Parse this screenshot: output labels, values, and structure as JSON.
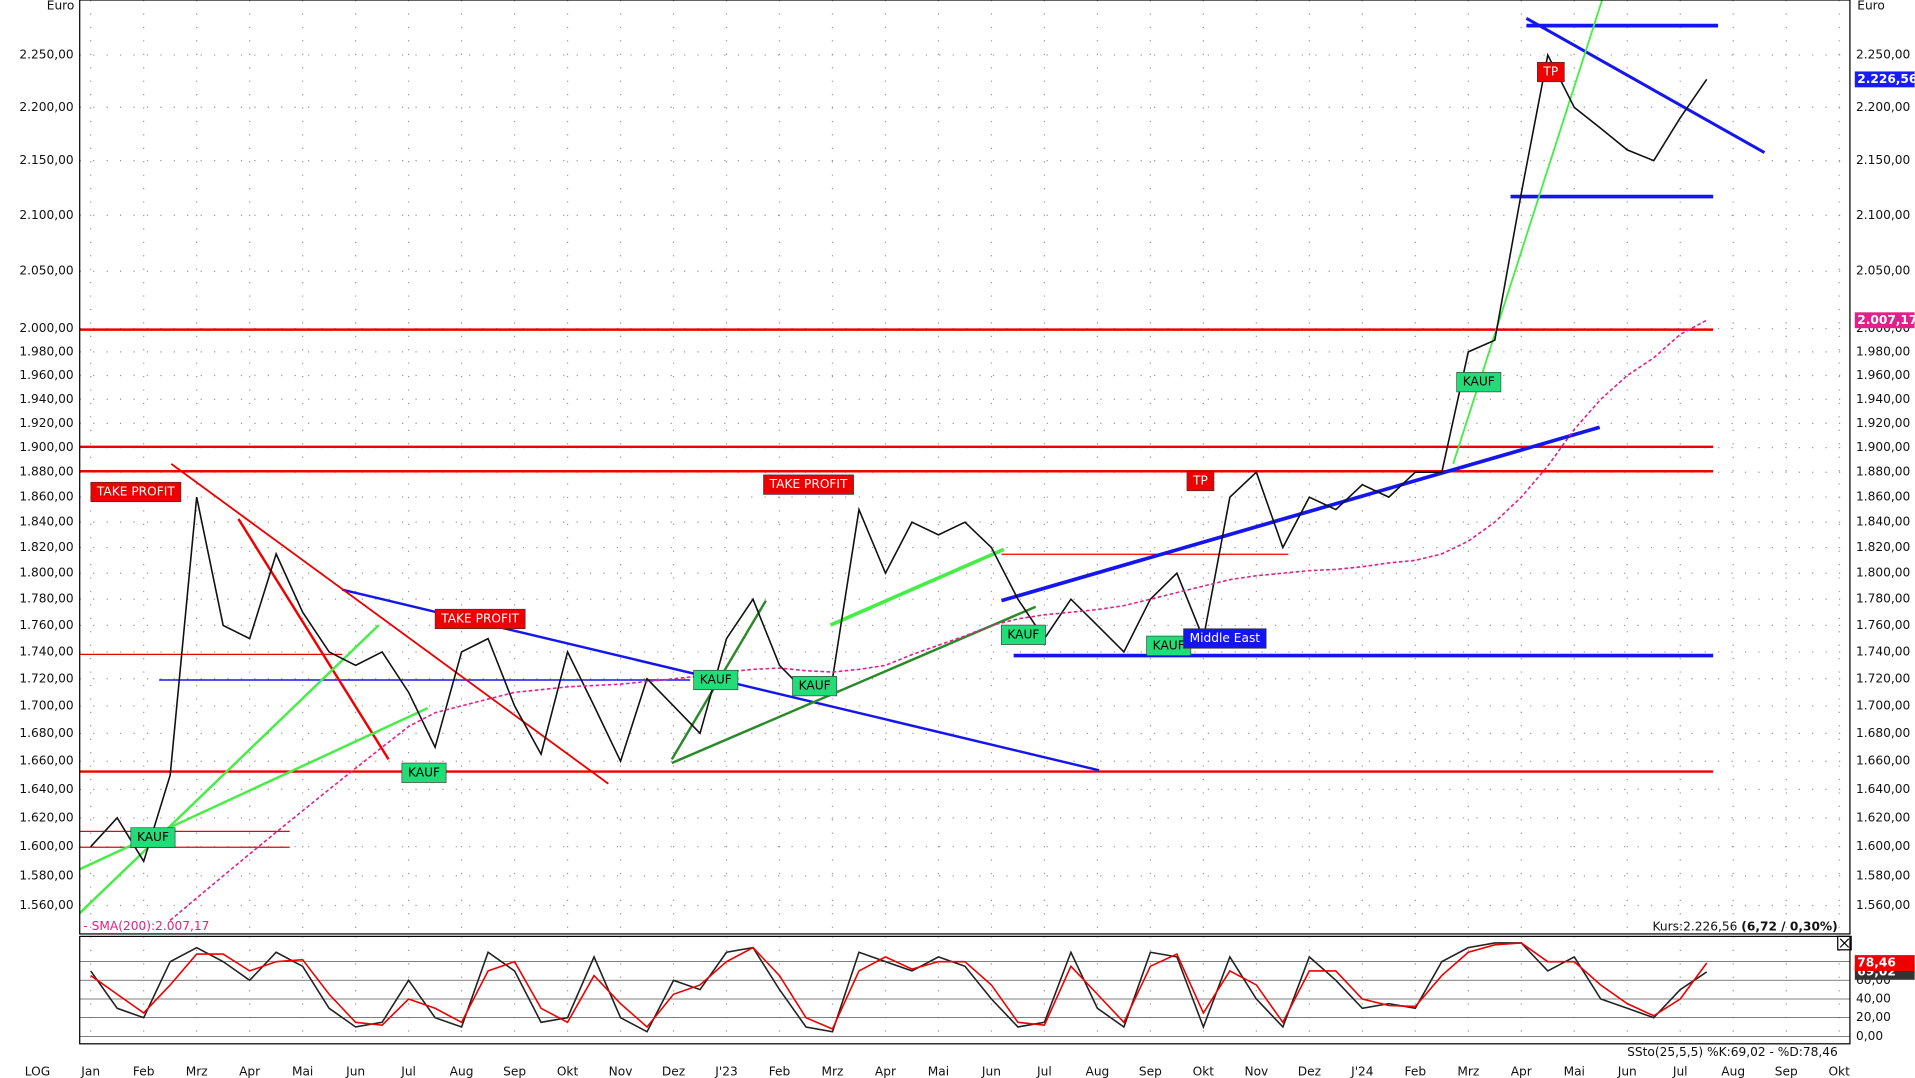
{
  "chart_data": [
    {
      "type": "line",
      "log": true,
      "ylabel": "Euro",
      "categories": [
        "Jan",
        null,
        "Feb",
        null,
        "Mrz",
        null,
        "Apr",
        null,
        "Mai",
        null,
        "Jun",
        null,
        "Jul",
        null,
        "Aug",
        null,
        "Sep",
        null,
        "Okt",
        null,
        "Nov",
        null,
        "Dez",
        null,
        "J'23",
        null,
        "Feb",
        null,
        "Mrz",
        null,
        "Apr",
        null,
        "Mai",
        null,
        "Jun",
        null,
        "Jul",
        null,
        "Aug",
        null,
        "Sep",
        null,
        "Okt",
        null,
        "Nov",
        null,
        "Dez",
        null,
        "J'24",
        null,
        "Feb",
        null,
        "Mrz",
        null,
        "Apr",
        null,
        "Mai",
        null,
        "Jun",
        null,
        "Jul",
        null,
        "Aug",
        null,
        "Sep",
        null,
        "Okt"
      ],
      "series": [
        {
          "color": "#111111",
          "dash": false,
          "values": [
            1600,
            1620,
            1590,
            1650,
            1860,
            1760,
            1750,
            1815,
            1770,
            1740,
            1730,
            1740,
            1710,
            1670,
            1740,
            1750,
            1700,
            1665,
            1740,
            1700,
            1660,
            1720,
            1700,
            1680,
            1750,
            1780,
            1730,
            1710,
            1720,
            1850,
            1800,
            1840,
            1830,
            1840,
            1820,
            1780,
            1750,
            1780,
            1760,
            1740,
            1780,
            1800,
            1750,
            1860,
            1880,
            1820,
            1860,
            1850,
            1870,
            1860,
            1880,
            1880,
            1980,
            1990,
            2120,
            2250,
            2200,
            2180,
            2160,
            2150,
            2190,
            2226.56,
            null,
            null,
            null,
            null,
            null
          ]
        },
        {
          "color": "#e0218a",
          "dash": true,
          "values": [
            null,
            null,
            null,
            1550,
            1565,
            1580,
            1595,
            1610,
            1625,
            1640,
            1655,
            1670,
            1685,
            1695,
            1700,
            1705,
            1710,
            1712,
            1714,
            1715,
            1716,
            1718,
            1720,
            1722,
            1725,
            1727,
            1728,
            1726,
            1725,
            1727,
            1730,
            1738,
            1745,
            1752,
            1760,
            1765,
            1768,
            1770,
            1772,
            1775,
            1780,
            1785,
            1790,
            1795,
            1798,
            1800,
            1802,
            1803,
            1805,
            1808,
            1810,
            1815,
            1825,
            1840,
            1860,
            1885,
            1915,
            1940,
            1960,
            1975,
            1995,
            2007.17,
            null,
            null,
            null,
            null,
            null
          ]
        }
      ],
      "ylim": [
        1541,
        2304
      ],
      "yticks": [
        {
          "value": 1560,
          "label": "1.560,00"
        },
        {
          "value": 1580,
          "label": "1.580,00"
        },
        {
          "value": 1600,
          "label": "1.600,00"
        },
        {
          "value": 1620,
          "label": "1.620,00"
        },
        {
          "value": 1640,
          "label": "1.640,00"
        },
        {
          "value": 1660,
          "label": "1.660,00"
        },
        {
          "value": 1680,
          "label": "1.680,00"
        },
        {
          "value": 1700,
          "label": "1.700,00"
        },
        {
          "value": 1720,
          "label": "1.720,00"
        },
        {
          "value": 1740,
          "label": "1.740,00"
        },
        {
          "value": 1760,
          "label": "1.760,00"
        },
        {
          "value": 1780,
          "label": "1.780,00"
        },
        {
          "value": 1800,
          "label": "1.800,00"
        },
        {
          "value": 1820,
          "label": "1.820,00"
        },
        {
          "value": 1840,
          "label": "1.840,00"
        },
        {
          "value": 1860,
          "label": "1.860,00"
        },
        {
          "value": 1880,
          "label": "1.880,00"
        },
        {
          "value": 1900,
          "label": "1.900,00"
        },
        {
          "value": 1920,
          "label": "1.920,00"
        },
        {
          "value": 1940,
          "label": "1.940,00"
        },
        {
          "value": 1960,
          "label": "1.960,00"
        },
        {
          "value": 1980,
          "label": "1.980,00"
        },
        {
          "value": 2000,
          "label": "2.000,00"
        },
        {
          "value": 2050,
          "label": "2.050,00"
        },
        {
          "value": 2100,
          "label": "2.100,00"
        },
        {
          "value": 2150,
          "label": "2.150,00"
        },
        {
          "value": 2200,
          "label": "2.200,00"
        },
        {
          "value": 2250,
          "label": "2.250,00"
        }
      ],
      "grid": true,
      "markers": [
        {
          "value": 2226.56,
          "label": "2.226,56",
          "color": "#1a1aff"
        },
        {
          "value": 2007.17,
          "label": "2.007,17",
          "color": "#e0218a"
        }
      ],
      "sma_label": "- SMA(200):2.007,17",
      "price_caption": "Kurs:2.226,56 ",
      "change_caption": "(6,72 / 0,30%)",
      "axis_mode": "LOG",
      "annotations": [
        {
          "text": "TAKE PROFIT",
          "color": "#ee0000"
        },
        {
          "text": "TAKE PROFIT",
          "color": "#ee0000"
        },
        {
          "text": "TAKE PROFIT",
          "color": "#ee0000"
        },
        {
          "text": "TP",
          "color": "#ee0000"
        },
        {
          "text": "TP",
          "color": "#ee0000"
        },
        {
          "text": "KAUF",
          "color": "#22dd77"
        },
        {
          "text": "KAUF",
          "color": "#22dd77"
        },
        {
          "text": "KAUF",
          "color": "#22dd77"
        },
        {
          "text": "KAUF",
          "color": "#22dd77"
        },
        {
          "text": "KAUF",
          "color": "#22dd77"
        },
        {
          "text": "KAUF",
          "color": "#22dd77"
        },
        {
          "text": "KAUF",
          "color": "#22dd77"
        },
        {
          "text": "Middle East",
          "color": "#1515ee"
        }
      ]
    },
    {
      "type": "line",
      "label": "SSto(25,5,5) %K:69,02 - %D:78,46",
      "series": [
        {
          "color": "#222222",
          "values": [
            70,
            30,
            20,
            80,
            95,
            80,
            60,
            90,
            75,
            30,
            10,
            15,
            60,
            20,
            10,
            90,
            70,
            15,
            20,
            85,
            20,
            5,
            60,
            50,
            90,
            95,
            50,
            10,
            5,
            90,
            80,
            70,
            85,
            75,
            40,
            10,
            15,
            90,
            30,
            10,
            90,
            85,
            10,
            85,
            40,
            10,
            85,
            60,
            30,
            35,
            30,
            80,
            95,
            100,
            100,
            70,
            85,
            40,
            30,
            20,
            50,
            69.02,
            null,
            null,
            null,
            null,
            null
          ]
        },
        {
          "color": "#ee0000",
          "values": [
            65,
            45,
            25,
            55,
            88,
            88,
            70,
            80,
            82,
            45,
            15,
            12,
            40,
            30,
            15,
            70,
            80,
            30,
            15,
            65,
            35,
            10,
            45,
            55,
            80,
            95,
            65,
            20,
            8,
            70,
            85,
            72,
            80,
            80,
            55,
            15,
            12,
            75,
            45,
            15,
            75,
            88,
            25,
            70,
            55,
            15,
            70,
            70,
            40,
            33,
            32,
            65,
            90,
            98,
            100,
            80,
            80,
            55,
            35,
            22,
            40,
            78.46,
            null,
            null,
            null,
            null,
            null
          ]
        }
      ],
      "ylim": [
        -8,
        107
      ],
      "yticks": [
        {
          "value": 0,
          "label": "0,00"
        },
        {
          "value": 20,
          "label": "20,00"
        },
        {
          "value": 40,
          "label": "40,00"
        },
        {
          "value": 60,
          "label": "60,00"
        },
        {
          "value": 80,
          "label": "80,00"
        }
      ],
      "markers": [
        {
          "value": 69.02,
          "label": "69,02",
          "color": "#333333"
        },
        {
          "value": 78.46,
          "label": "78,46",
          "color": "#ee0000"
        }
      ]
    }
  ]
}
